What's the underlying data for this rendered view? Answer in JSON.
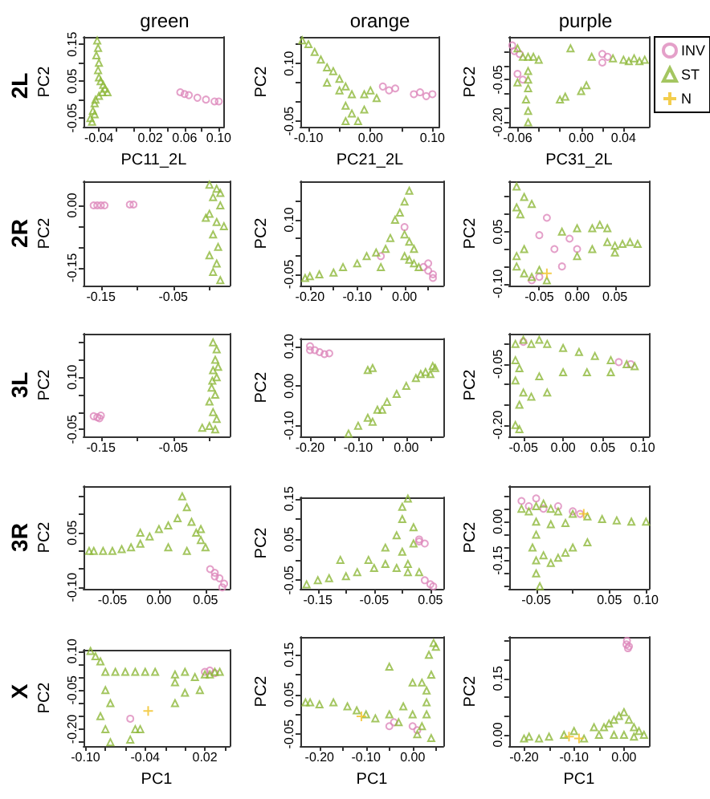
{
  "chart_data": [
    {
      "type": "scatter",
      "title": "green",
      "xlabel": "PC11_2L",
      "ylabel": "PC2",
      "annotations": [
        "2L"
      ],
      "xlim": [
        -0.058,
        0.106
      ],
      "ylim": [
        -0.074,
        0.17
      ],
      "xticks": [
        {
          "value": -0.04,
          "label": "-0.04"
        },
        {
          "value": -0.02,
          "label": null
        },
        {
          "value": 0,
          "label": null
        },
        {
          "value": 0.02,
          "label": "0.02"
        },
        {
          "value": 0.04,
          "label": null
        },
        {
          "value": 0.06,
          "label": "0.06"
        },
        {
          "value": 0.08,
          "label": null
        },
        {
          "value": 0.1,
          "label": "0.10"
        }
      ],
      "yticks": [
        {
          "value": -0.05,
          "label": "-0.05"
        },
        {
          "value": 0,
          "label": null
        },
        {
          "value": 0.05,
          "label": "0.05"
        },
        {
          "value": 0.1,
          "label": null
        },
        {
          "value": 0.15,
          "label": "0.15"
        }
      ],
      "series": [
        {
          "color": "#dd88bb",
          "marker": "circle",
          "x": [
            0.055,
            0.06,
            0.065,
            0.075,
            0.085,
            0.095,
            0.1
          ],
          "values": [
            0.02,
            0.015,
            0.012,
            0.005,
            0.0,
            -0.005,
            -0.005
          ]
        },
        {
          "color": "#8db83a",
          "marker": "triangle",
          "x": [
            -0.042,
            -0.041,
            -0.043,
            -0.04,
            -0.041,
            -0.04,
            -0.038,
            -0.035,
            -0.033,
            -0.03,
            -0.036,
            -0.04,
            -0.045,
            -0.047,
            -0.05,
            -0.048,
            -0.045,
            -0.044
          ],
          "values": [
            0.16,
            0.14,
            0.12,
            0.1,
            0.08,
            0.06,
            0.05,
            0.04,
            0.03,
            0.02,
            0.02,
            0.01,
            -0.01,
            -0.03,
            -0.05,
            -0.06,
            -0.04,
            0.0
          ]
        }
      ]
    },
    {
      "type": "scatter",
      "title": "orange",
      "xlabel": "PC21_2L",
      "ylabel": "PC2",
      "xlim": [
        -0.113,
        0.111
      ],
      "ylim": [
        -0.065,
        0.169
      ],
      "xticks": [
        {
          "value": -0.1,
          "label": "-0.10"
        },
        {
          "value": -0.05,
          "label": null
        },
        {
          "value": 0,
          "label": "0.00"
        },
        {
          "value": 0.05,
          "label": null
        },
        {
          "value": 0.1,
          "label": "0.10"
        }
      ],
      "yticks": [
        {
          "value": -0.05,
          "label": "-0.05"
        },
        {
          "value": 0,
          "label": null
        },
        {
          "value": 0.05,
          "label": null
        },
        {
          "value": 0.1,
          "label": "0.10"
        },
        {
          "value": 0.15,
          "label": null
        }
      ],
      "series": [
        {
          "color": "#dd88bb",
          "marker": "circle",
          "x": [
            0.02,
            0.03,
            0.04,
            0.07,
            0.08,
            0.1,
            0.09
          ],
          "values": [
            0.04,
            0.03,
            0.035,
            0.02,
            0.025,
            0.02,
            0.015
          ]
        },
        {
          "color": "#8db83a",
          "marker": "triangle",
          "x": [
            -0.11,
            -0.1,
            -0.09,
            -0.08,
            -0.07,
            -0.06,
            -0.05,
            -0.04,
            -0.07,
            -0.05,
            -0.03,
            -0.01,
            0.0,
            -0.04,
            -0.03,
            -0.02,
            -0.04,
            -0.01,
            0.01
          ],
          "values": [
            0.16,
            0.15,
            0.13,
            0.11,
            0.09,
            0.08,
            0.06,
            0.04,
            0.05,
            0.03,
            0.02,
            0.02,
            0.03,
            -0.01,
            -0.03,
            -0.05,
            -0.05,
            -0.02,
            0.01
          ]
        }
      ]
    },
    {
      "type": "scatter",
      "title": "purple",
      "xlabel": "PC31_2L",
      "ylabel": "PC2",
      "legend": "right",
      "xlim": [
        -0.068,
        0.064
      ],
      "ylim": [
        -0.216,
        0.1
      ],
      "xticks": [
        {
          "value": -0.06,
          "label": "-0.06"
        },
        {
          "value": -0.04,
          "label": null
        },
        {
          "value": -0.02,
          "label": null
        },
        {
          "value": 0,
          "label": "0.00"
        },
        {
          "value": 0.02,
          "label": null
        },
        {
          "value": 0.04,
          "label": "0.04"
        }
      ],
      "yticks": [
        {
          "value": -0.2,
          "label": "-0.20"
        },
        {
          "value": -0.15,
          "label": null
        },
        {
          "value": -0.1,
          "label": null
        },
        {
          "value": -0.05,
          "label": "-0.05"
        },
        {
          "value": 0,
          "label": null
        },
        {
          "value": 0.05,
          "label": null
        }
      ],
      "series": [
        {
          "name": "INV",
          "color": "#dd88bb",
          "marker": "circle",
          "x": [
            -0.065,
            -0.063,
            -0.058,
            -0.06,
            -0.055,
            0.02,
            0.02,
            0.025
          ],
          "values": [
            0.07,
            0.05,
            0.04,
            -0.03,
            -0.05,
            0.04,
            0.01,
            0.03
          ]
        },
        {
          "name": "ST",
          "color": "#8db83a",
          "marker": "triangle",
          "x": [
            -0.06,
            -0.055,
            -0.05,
            -0.045,
            -0.04,
            -0.05,
            -0.05,
            -0.05,
            -0.052,
            -0.05,
            -0.05,
            -0.06,
            -0.02,
            -0.015,
            0.0,
            0.005,
            -0.01,
            0.01,
            0.03,
            0.04,
            0.05,
            0.06,
            0.045,
            0.055
          ],
          "values": [
            0.06,
            0.03,
            0.03,
            0.03,
            0.02,
            -0.02,
            -0.05,
            -0.08,
            -0.12,
            -0.16,
            -0.2,
            -0.06,
            -0.12,
            -0.11,
            -0.09,
            -0.07,
            0.06,
            0.03,
            0.025,
            0.02,
            0.025,
            0.02,
            0.015,
            0.015
          ]
        },
        {
          "name": "N",
          "color": "#f0c020",
          "marker": "cross"
        }
      ]
    },
    {
      "type": "scatter",
      "ylabel": "PC2",
      "annotations": [
        "2R"
      ],
      "xlim": [
        -0.174,
        0.028
      ],
      "ylim": [
        -0.193,
        0.058
      ],
      "xticks": [
        {
          "value": -0.15,
          "label": "-0.15"
        },
        {
          "value": -0.1,
          "label": null
        },
        {
          "value": -0.05,
          "label": "-0.05"
        },
        {
          "value": 0,
          "label": null
        }
      ],
      "yticks": [
        {
          "value": -0.15,
          "label": "-0.15"
        },
        {
          "value": -0.1,
          "label": null
        },
        {
          "value": -0.05,
          "label": null
        },
        {
          "value": 0,
          "label": "0.00"
        }
      ],
      "series": [
        {
          "color": "#dd88bb",
          "marker": "circle",
          "x": [
            -0.16,
            -0.155,
            -0.15,
            -0.145,
            -0.11,
            -0.105
          ],
          "values": [
            0.0,
            0.0,
            0.0,
            0.0,
            0.002,
            0.002
          ]
        },
        {
          "color": "#8db83a",
          "marker": "triangle",
          "x": [
            0.0,
            0.01,
            0.015,
            0.005,
            0.015,
            0.0,
            0.01,
            0.005,
            0.012,
            0.0,
            0.01,
            0.005,
            0.015,
            0.02,
            -0.005
          ],
          "values": [
            0.05,
            0.04,
            0.03,
            0.02,
            0.0,
            -0.02,
            -0.04,
            -0.07,
            -0.1,
            -0.12,
            -0.14,
            -0.16,
            -0.18,
            -0.05,
            -0.03
          ]
        }
      ]
    },
    {
      "type": "scatter",
      "ylabel": "PC2",
      "xlim": [
        -0.22,
        0.082
      ],
      "ylim": [
        -0.081,
        0.206
      ],
      "xticks": [
        {
          "value": -0.2,
          "label": "-0.20"
        },
        {
          "value": -0.15,
          "label": null
        },
        {
          "value": -0.1,
          "label": "-0.10"
        },
        {
          "value": -0.05,
          "label": null
        },
        {
          "value": 0,
          "label": "0.00"
        },
        {
          "value": 0.05,
          "label": null
        }
      ],
      "yticks": [
        {
          "value": -0.05,
          "label": "-0.05"
        },
        {
          "value": 0,
          "label": null
        },
        {
          "value": 0.05,
          "label": null
        },
        {
          "value": 0.1,
          "label": "0.10"
        },
        {
          "value": 0.15,
          "label": null
        }
      ],
      "series": [
        {
          "color": "#dd88bb",
          "marker": "circle",
          "x": [
            0.04,
            0.05,
            0.06,
            0.05,
            0.0,
            0.06,
            -0.05
          ],
          "values": [
            -0.03,
            -0.04,
            -0.05,
            -0.02,
            0.08,
            -0.06,
            0.0
          ]
        },
        {
          "color": "#8db83a",
          "marker": "triangle",
          "x": [
            -0.21,
            -0.2,
            -0.18,
            -0.15,
            -0.13,
            -0.1,
            -0.08,
            -0.06,
            -0.04,
            -0.03,
            -0.02,
            0.0,
            0.01,
            -0.01,
            0.0,
            0.01,
            0.0,
            0.02,
            0.03,
            0.01,
            -0.05,
            0.02
          ],
          "values": [
            -0.06,
            -0.055,
            -0.05,
            -0.045,
            -0.03,
            -0.02,
            0.0,
            0.01,
            0.02,
            0.05,
            0.1,
            0.15,
            0.18,
            0.12,
            0.06,
            0.04,
            0.0,
            -0.02,
            -0.03,
            -0.01,
            -0.03,
            0.02
          ]
        }
      ]
    },
    {
      "type": "scatter",
      "ylabel": "PC2",
      "xlim": [
        -0.09,
        0.095
      ],
      "ylim": [
        -0.105,
        0.195
      ],
      "xticks": [
        {
          "value": -0.05,
          "label": "-0.05"
        },
        {
          "value": 0,
          "label": "0.00"
        },
        {
          "value": 0.05,
          "label": "0.05"
        }
      ],
      "yticks": [
        {
          "value": -0.1,
          "label": "-0.10"
        },
        {
          "value": -0.05,
          "label": null
        },
        {
          "value": 0,
          "label": null
        },
        {
          "value": 0.05,
          "label": "0.05"
        },
        {
          "value": 0.1,
          "label": null
        },
        {
          "value": 0.15,
          "label": null
        }
      ],
      "series": [
        {
          "color": "#dd88bb",
          "marker": "circle",
          "x": [
            -0.04,
            -0.05,
            -0.03,
            -0.05,
            -0.06,
            -0.02,
            -0.01,
            0.0
          ],
          "values": [
            0.09,
            0.04,
            0.0,
            -0.08,
            -0.09,
            -0.05,
            0.03,
            0.0
          ]
        },
        {
          "color": "#8db83a",
          "marker": "triangle",
          "x": [
            -0.08,
            -0.07,
            -0.08,
            -0.075,
            -0.06,
            -0.08,
            -0.07,
            -0.06,
            -0.05,
            -0.07,
            -0.08,
            -0.04,
            -0.02,
            0.0,
            0.02,
            0.03,
            0.04,
            0.0,
            0.02,
            0.04,
            0.05,
            0.06,
            0.07,
            0.08,
            0.05
          ],
          "values": [
            0.18,
            0.15,
            0.12,
            0.1,
            0.13,
            -0.05,
            -0.07,
            -0.08,
            -0.06,
            0.0,
            -0.02,
            -0.09,
            0.05,
            0.06,
            0.06,
            0.07,
            0.06,
            -0.02,
            0.0,
            0.02,
            0.01,
            0.015,
            0.02,
            0.015,
            -0.01
          ]
        },
        {
          "color": "#f0c020",
          "marker": "cross",
          "x": [
            -0.04
          ],
          "values": [
            -0.07
          ]
        }
      ]
    },
    {
      "type": "scatter",
      "ylabel": "PC2",
      "annotations": [
        "3L"
      ],
      "xlim": [
        -0.174,
        0.028
      ],
      "ylim": [
        -0.07,
        0.225
      ],
      "xticks": [
        {
          "value": -0.15,
          "label": "-0.15"
        },
        {
          "value": -0.1,
          "label": null
        },
        {
          "value": -0.05,
          "label": "-0.05"
        },
        {
          "value": 0,
          "label": null
        }
      ],
      "yticks": [
        {
          "value": -0.05,
          "label": "-0.05"
        },
        {
          "value": 0,
          "label": null
        },
        {
          "value": 0.05,
          "label": null
        },
        {
          "value": 0.1,
          "label": "0.10"
        },
        {
          "value": 0.15,
          "label": null
        },
        {
          "value": 0.2,
          "label": null
        }
      ],
      "series": [
        {
          "color": "#dd88bb",
          "marker": "circle",
          "x": [
            -0.155,
            -0.15,
            -0.16,
            -0.152
          ],
          "values": [
            -0.015,
            -0.01,
            -0.012,
            -0.018
          ]
        },
        {
          "color": "#8db83a",
          "marker": "triangle",
          "x": [
            0.005,
            0.01,
            0.008,
            0.005,
            0.01,
            0.003,
            0.008,
            0.0,
            0.005,
            0.01,
            0.0,
            0.008,
            -0.01,
            0.012,
            0.004
          ],
          "values": [
            0.2,
            0.18,
            0.15,
            0.12,
            0.1,
            0.07,
            0.05,
            0.03,
            0.0,
            -0.02,
            -0.04,
            -0.05,
            -0.045,
            0.13,
            0.09
          ]
        }
      ]
    },
    {
      "type": "scatter",
      "ylabel": "PC2",
      "xlim": [
        -0.22,
        0.077
      ],
      "ylim": [
        -0.127,
        0.119
      ],
      "xticks": [
        {
          "value": -0.2,
          "label": "-0.20"
        },
        {
          "value": -0.15,
          "label": null
        },
        {
          "value": -0.1,
          "label": "-0.10"
        },
        {
          "value": -0.05,
          "label": null
        },
        {
          "value": 0,
          "label": "0.00"
        },
        {
          "value": 0.05,
          "label": null
        }
      ],
      "yticks": [
        {
          "value": -0.1,
          "label": "-0.10"
        },
        {
          "value": 0,
          "label": "0.00"
        },
        {
          "value": 0.1,
          "label": "0.10"
        }
      ],
      "series": [
        {
          "color": "#dd88bb",
          "marker": "circle",
          "x": [
            -0.2,
            -0.19,
            -0.18,
            -0.17,
            -0.2,
            -0.16
          ],
          "values": [
            0.1,
            0.09,
            0.085,
            0.08,
            0.09,
            0.082
          ]
        },
        {
          "color": "#8db83a",
          "marker": "triangle",
          "x": [
            -0.12,
            -0.1,
            -0.08,
            -0.06,
            -0.04,
            -0.02,
            0.0,
            0.02,
            0.04,
            0.06,
            0.05,
            0.03,
            -0.05,
            -0.07,
            -0.08,
            -0.07,
            0.055
          ],
          "values": [
            -0.12,
            -0.1,
            -0.08,
            -0.06,
            -0.04,
            -0.02,
            0.0,
            0.02,
            0.035,
            0.045,
            0.03,
            0.03,
            -0.06,
            -0.09,
            0.04,
            0.045,
            0.05
          ]
        }
      ]
    },
    {
      "type": "scatter",
      "ylabel": "PC2",
      "xlim": [
        -0.068,
        0.108
      ],
      "ylim": [
        -0.228,
        0.025
      ],
      "xticks": [
        {
          "value": -0.05,
          "label": "-0.05"
        },
        {
          "value": 0,
          "label": "0.00"
        },
        {
          "value": 0.05,
          "label": "0.05"
        },
        {
          "value": 0.1,
          "label": "0.10"
        }
      ],
      "yticks": [
        {
          "value": -0.2,
          "label": "-0.20"
        },
        {
          "value": -0.15,
          "label": null
        },
        {
          "value": -0.1,
          "label": null
        },
        {
          "value": -0.05,
          "label": "-0.05"
        },
        {
          "value": 0,
          "label": null
        }
      ],
      "series": [
        {
          "color": "#dd88bb",
          "marker": "circle",
          "x": [
            0.07,
            0.085,
            -0.05
          ],
          "values": [
            -0.045,
            -0.05,
            0.005
          ]
        },
        {
          "color": "#8db83a",
          "marker": "triangle",
          "x": [
            -0.06,
            -0.05,
            -0.04,
            -0.03,
            -0.02,
            0.0,
            0.02,
            0.04,
            0.06,
            0.08,
            0.09,
            -0.06,
            -0.055,
            -0.06,
            -0.05,
            -0.055,
            -0.06,
            -0.055,
            -0.03,
            0.0,
            0.03,
            0.06,
            -0.02,
            -0.04
          ],
          "values": [
            0.0,
            0.01,
            0.0,
            0.01,
            0.0,
            -0.01,
            -0.02,
            -0.03,
            -0.04,
            -0.05,
            -0.055,
            -0.04,
            -0.06,
            -0.09,
            -0.12,
            -0.15,
            -0.2,
            -0.21,
            -0.08,
            -0.07,
            -0.07,
            -0.07,
            -0.12,
            -0.13
          ]
        }
      ]
    },
    {
      "type": "scatter",
      "ylabel": "PC2",
      "annotations": [
        "3R"
      ],
      "xlim": [
        -0.081,
        0.076
      ],
      "ylim": [
        -0.104,
        0.178
      ],
      "xticks": [
        {
          "value": -0.05,
          "label": "-0.05"
        },
        {
          "value": 0,
          "label": "0.00"
        },
        {
          "value": 0.05,
          "label": "0.05"
        }
      ],
      "yticks": [
        {
          "value": -0.1,
          "label": "-0.10"
        },
        {
          "value": -0.05,
          "label": null
        },
        {
          "value": 0,
          "label": null
        },
        {
          "value": 0.05,
          "label": "0.05"
        },
        {
          "value": 0.1,
          "label": null
        },
        {
          "value": 0.15,
          "label": null
        }
      ],
      "series": [
        {
          "color": "#dd88bb",
          "marker": "circle",
          "x": [
            0.055,
            0.06,
            0.065,
            0.07,
            0.068,
            0.06
          ],
          "values": [
            -0.05,
            -0.06,
            -0.075,
            -0.09,
            -0.1,
            -0.07
          ]
        },
        {
          "color": "#8db83a",
          "marker": "triangle",
          "x": [
            -0.075,
            -0.07,
            -0.06,
            -0.05,
            -0.04,
            -0.03,
            -0.02,
            -0.01,
            0.0,
            0.01,
            0.02,
            0.025,
            0.03,
            0.035,
            0.04,
            0.045,
            0.05,
            0.03,
            0.01,
            -0.02,
            0.045
          ],
          "values": [
            0.0,
            0.0,
            0.0,
            0.0,
            0.005,
            0.01,
            0.02,
            0.04,
            0.06,
            0.07,
            0.09,
            0.15,
            0.12,
            0.08,
            0.05,
            0.03,
            0.01,
            0.0,
            0.01,
            0.05,
            0.06
          ]
        }
      ]
    },
    {
      "type": "scatter",
      "ylabel": "PC2",
      "xlim": [
        -0.181,
        0.073
      ],
      "ylim": [
        -0.071,
        0.153
      ],
      "xticks": [
        {
          "value": -0.15,
          "label": "-0.15"
        },
        {
          "value": -0.1,
          "label": null
        },
        {
          "value": -0.05,
          "label": "-0.05"
        },
        {
          "value": 0,
          "label": null
        },
        {
          "value": 0.05,
          "label": "0.05"
        }
      ],
      "yticks": [
        {
          "value": -0.05,
          "label": "-0.05"
        },
        {
          "value": 0,
          "label": null
        },
        {
          "value": 0.05,
          "label": "0.05"
        },
        {
          "value": 0.1,
          "label": null
        },
        {
          "value": 0.15,
          "label": "0.15"
        }
      ],
      "series": [
        {
          "color": "#dd88bb",
          "marker": "circle",
          "x": [
            0.03,
            0.04,
            0.04,
            0.05,
            0.055,
            0.03
          ],
          "values": [
            0.05,
            0.04,
            -0.05,
            -0.06,
            -0.065,
            0.045
          ]
        },
        {
          "color": "#8db83a",
          "marker": "triangle",
          "x": [
            -0.17,
            -0.15,
            -0.13,
            -0.1,
            -0.08,
            -0.05,
            -0.03,
            -0.01,
            0.01,
            0.0,
            -0.01,
            0.0,
            0.01,
            0.0,
            0.02,
            0.02,
            -0.06,
            -0.11,
            0.03,
            0.01,
            -0.03
          ],
          "values": [
            -0.06,
            -0.05,
            -0.045,
            -0.04,
            -0.03,
            -0.02,
            -0.01,
            -0.02,
            -0.01,
            0.02,
            0.06,
            0.1,
            0.15,
            0.13,
            0.08,
            0.04,
            0.0,
            0.0,
            -0.03,
            -0.03,
            0.03
          ]
        }
      ]
    },
    {
      "type": "scatter",
      "ylabel": "PC2",
      "xlim": [
        -0.087,
        0.104
      ],
      "ylim": [
        -0.26,
        0.1375
      ],
      "xticks": [
        {
          "value": -0.05,
          "label": "-0.05"
        },
        {
          "value": 0,
          "label": null
        },
        {
          "value": 0.05,
          "label": "0.05"
        },
        {
          "value": 0.1,
          "label": "0.10"
        }
      ],
      "yticks": [
        {
          "value": -0.25,
          "label": null
        },
        {
          "value": -0.2,
          "label": null
        },
        {
          "value": -0.15,
          "label": "-0.15"
        },
        {
          "value": -0.1,
          "label": null
        },
        {
          "value": -0.05,
          "label": null
        },
        {
          "value": 0,
          "label": "0.00"
        },
        {
          "value": 0.05,
          "label": null
        },
        {
          "value": 0.1,
          "label": null
        }
      ],
      "series": [
        {
          "color": "#dd88bb",
          "marker": "circle",
          "x": [
            -0.07,
            -0.05,
            -0.04,
            -0.02,
            0.0,
            0.01,
            -0.06
          ],
          "values": [
            0.08,
            0.09,
            0.05,
            0.06,
            0.04,
            0.03,
            0.06
          ]
        },
        {
          "color": "#8db83a",
          "marker": "triangle",
          "x": [
            -0.07,
            -0.06,
            -0.05,
            -0.04,
            -0.03,
            -0.02,
            0.0,
            0.02,
            0.04,
            0.06,
            0.08,
            0.1,
            -0.05,
            -0.03,
            -0.01,
            -0.05,
            -0.055,
            -0.05,
            -0.05,
            -0.045,
            -0.04,
            -0.03,
            -0.01,
            0.0,
            0.02,
            -0.02
          ],
          "values": [
            0.05,
            0.04,
            0.06,
            0.07,
            0.05,
            0.04,
            0.03,
            0.02,
            0.01,
            0.005,
            0.0,
            0.0,
            0.0,
            -0.01,
            -0.005,
            -0.05,
            -0.1,
            -0.15,
            -0.2,
            -0.25,
            -0.13,
            -0.16,
            -0.12,
            -0.1,
            -0.08,
            -0.14
          ]
        },
        {
          "color": "#f0c020",
          "marker": "cross",
          "x": [
            0.015
          ],
          "values": [
            0.03
          ]
        }
      ]
    },
    {
      "type": "scatter",
      "xlabel": "PC1",
      "ylabel": "PC2",
      "annotations": [
        "X"
      ],
      "xlim": [
        -0.102,
        0.045
      ],
      "ylim": [
        -0.265,
        0.105
      ],
      "xticks": [
        {
          "value": -0.1,
          "label": "-0.10"
        },
        {
          "value": -0.08,
          "label": null
        },
        {
          "value": -0.06,
          "label": null
        },
        {
          "value": -0.04,
          "label": "-0.04"
        },
        {
          "value": -0.02,
          "label": null
        },
        {
          "value": 0,
          "label": null
        },
        {
          "value": 0.02,
          "label": "0.02"
        },
        {
          "value": 0.04,
          "label": null
        }
      ],
      "yticks": [
        {
          "value": -0.25,
          "label": null
        },
        {
          "value": -0.2,
          "label": "-0.20"
        },
        {
          "value": -0.15,
          "label": null
        },
        {
          "value": -0.1,
          "label": null
        },
        {
          "value": -0.05,
          "label": "-0.05"
        },
        {
          "value": 0,
          "label": null
        },
        {
          "value": 0.05,
          "label": null
        },
        {
          "value": 0.1,
          "label": "0.10"
        }
      ],
      "series": [
        {
          "color": "#dd88bb",
          "marker": "circle",
          "x": [
            0.02,
            0.025,
            0.03,
            -0.055
          ],
          "values": [
            0.02,
            0.025,
            0.015,
            -0.16
          ]
        },
        {
          "color": "#8db83a",
          "marker": "triangle",
          "x": [
            -0.095,
            -0.09,
            -0.085,
            -0.08,
            -0.07,
            -0.06,
            -0.05,
            -0.04,
            -0.03,
            -0.01,
            0.0,
            0.01,
            0.02,
            0.03,
            0.035,
            0.025,
            -0.01,
            0.0,
            -0.01,
            0.015,
            -0.08,
            -0.075,
            -0.085,
            -0.08,
            -0.075,
            -0.05,
            -0.045,
            -0.055
          ],
          "values": [
            0.1,
            0.08,
            0.06,
            0.02,
            0.02,
            0.02,
            0.02,
            0.02,
            0.02,
            0.01,
            0.02,
            0.0,
            0.01,
            0.02,
            0.02,
            0.01,
            -0.02,
            -0.06,
            -0.1,
            -0.05,
            -0.05,
            -0.1,
            -0.15,
            -0.2,
            -0.25,
            -0.2,
            -0.2,
            -0.24
          ]
        },
        {
          "color": "#f0c020",
          "marker": "cross",
          "x": [
            -0.037
          ],
          "values": [
            -0.13
          ]
        }
      ]
    },
    {
      "type": "scatter",
      "xlabel": "PC1",
      "ylabel": "PC2",
      "xlim": [
        -0.241,
        0.066
      ],
      "ylim": [
        -0.08,
        0.195
      ],
      "xticks": [
        {
          "value": -0.2,
          "label": "-0.20"
        },
        {
          "value": -0.15,
          "label": null
        },
        {
          "value": -0.1,
          "label": "-0.10"
        },
        {
          "value": -0.05,
          "label": null
        },
        {
          "value": 0,
          "label": "0.00"
        },
        {
          "value": 0.05,
          "label": null
        }
      ],
      "yticks": [
        {
          "value": -0.05,
          "label": "-0.05"
        },
        {
          "value": 0,
          "label": null
        },
        {
          "value": 0.05,
          "label": "0.05"
        },
        {
          "value": 0.1,
          "label": null
        },
        {
          "value": 0.15,
          "label": "0.15"
        }
      ],
      "series": [
        {
          "color": "#dd88bb",
          "marker": "circle",
          "x": [
            -0.05,
            -0.04,
            0.0,
            0.01
          ],
          "values": [
            -0.03,
            -0.02,
            -0.03,
            -0.04
          ]
        },
        {
          "color": "#8db83a",
          "marker": "triangle",
          "x": [
            -0.23,
            -0.22,
            -0.2,
            -0.17,
            -0.14,
            -0.12,
            -0.1,
            -0.08,
            -0.05,
            -0.03,
            -0.02,
            0.0,
            0.02,
            0.03,
            0.03,
            0.02,
            0.04,
            0.035,
            0.045,
            0.05,
            0.04,
            0.0,
            -0.05,
            0.01,
            0.03
          ],
          "values": [
            0.03,
            0.03,
            0.025,
            0.03,
            0.02,
            0.01,
            0.0,
            -0.01,
            0.0,
            -0.02,
            0.02,
            0.0,
            -0.03,
            0.03,
            0.06,
            0.08,
            0.1,
            0.15,
            0.18,
            0.17,
            -0.06,
            0.08,
            0.12,
            -0.05,
            0.0
          ]
        },
        {
          "color": "#f0c020",
          "marker": "cross",
          "x": [
            -0.11
          ],
          "values": [
            -0.005
          ]
        }
      ]
    },
    {
      "type": "scatter",
      "xlabel": "PC1",
      "ylabel": "PC2",
      "xlim": [
        -0.23,
        0.05
      ],
      "ylim": [
        -0.03,
        0.26
      ],
      "xticks": [
        {
          "value": -0.2,
          "label": "-0.20"
        },
        {
          "value": -0.15,
          "label": null
        },
        {
          "value": -0.1,
          "label": "-0.10"
        },
        {
          "value": -0.05,
          "label": null
        },
        {
          "value": 0,
          "label": "0.00"
        }
      ],
      "yticks": [
        {
          "value": 0,
          "label": "0.00"
        },
        {
          "value": 0.05,
          "label": null
        },
        {
          "value": 0.1,
          "label": null
        },
        {
          "value": 0.15,
          "label": "0.15"
        },
        {
          "value": 0.2,
          "label": null
        },
        {
          "value": 0.25,
          "label": null
        }
      ],
      "series": [
        {
          "color": "#dd88bb",
          "marker": "circle",
          "x": [
            0.005,
            0.008,
            0.006,
            0.01
          ],
          "values": [
            0.24,
            0.23,
            0.25,
            0.235
          ]
        },
        {
          "color": "#8db83a",
          "marker": "triangle",
          "x": [
            -0.2,
            -0.19,
            -0.17,
            -0.15,
            -0.12,
            -0.1,
            -0.08,
            -0.06,
            -0.05,
            -0.04,
            -0.03,
            -0.02,
            -0.01,
            0.0,
            0.01,
            0.02,
            0.03,
            0.04,
            0.0,
            -0.02,
            0.02
          ],
          "values": [
            -0.01,
            -0.005,
            -0.01,
            -0.005,
            0.0,
            0.01,
            -0.01,
            0.02,
            0.0,
            0.02,
            0.03,
            0.04,
            0.05,
            0.06,
            0.04,
            0.02,
            0.01,
            0.0,
            0.0,
            0.0,
            -0.005
          ]
        },
        {
          "color": "#f0c020",
          "marker": "cross",
          "x": [
            -0.09,
            -0.11
          ],
          "values": [
            -0.01,
            -0.005
          ]
        }
      ]
    }
  ]
}
